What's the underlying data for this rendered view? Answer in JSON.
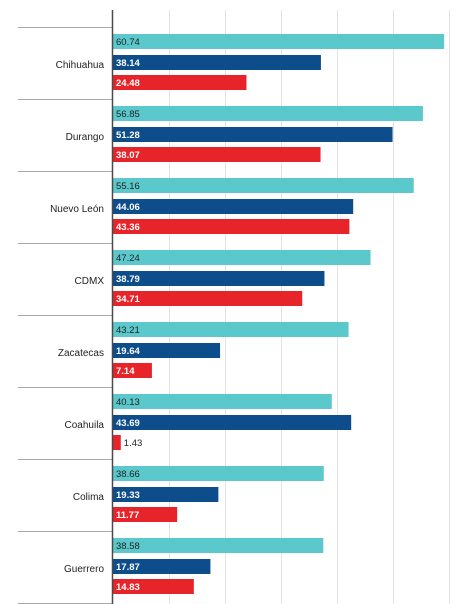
{
  "chart_data": {
    "type": "bar",
    "orientation": "horizontal",
    "categories": [
      "Chihuahua",
      "Durango",
      "Nuevo León",
      "CDMX",
      "Zacatecas",
      "Coahuila",
      "Colima",
      "Guerrero"
    ],
    "series": [
      {
        "color": "#5bc8cc",
        "label_color": "#222222",
        "values": [
          60.74,
          56.85,
          55.16,
          47.24,
          43.21,
          40.13,
          38.66,
          38.58
        ]
      },
      {
        "color": "#0e4d8c",
        "label_color": "#ffffff",
        "values": [
          38.14,
          51.28,
          44.06,
          38.79,
          19.64,
          43.69,
          19.33,
          17.87
        ]
      },
      {
        "color": "#e8242b",
        "label_color": "#ffffff",
        "values": [
          24.48,
          38.07,
          43.36,
          34.71,
          7.14,
          1.43,
          11.77,
          14.83
        ]
      }
    ],
    "value_labels": [
      [
        "60.74",
        "56.85",
        "55.16",
        "47.24",
        "43.21",
        "40.13",
        "38.66",
        "38.58"
      ],
      [
        "38.14",
        "51.28",
        "44.06",
        "38.79",
        "19.64",
        "43.69",
        "19.33",
        "17.87"
      ],
      [
        "24.48",
        "38.07",
        "43.36",
        "34.71",
        "7.14",
        "1.43",
        "11.77",
        "14.83"
      ]
    ],
    "xlim": [
      0,
      62
    ],
    "grid": true,
    "title": "",
    "xlabel": "",
    "ylabel": ""
  }
}
